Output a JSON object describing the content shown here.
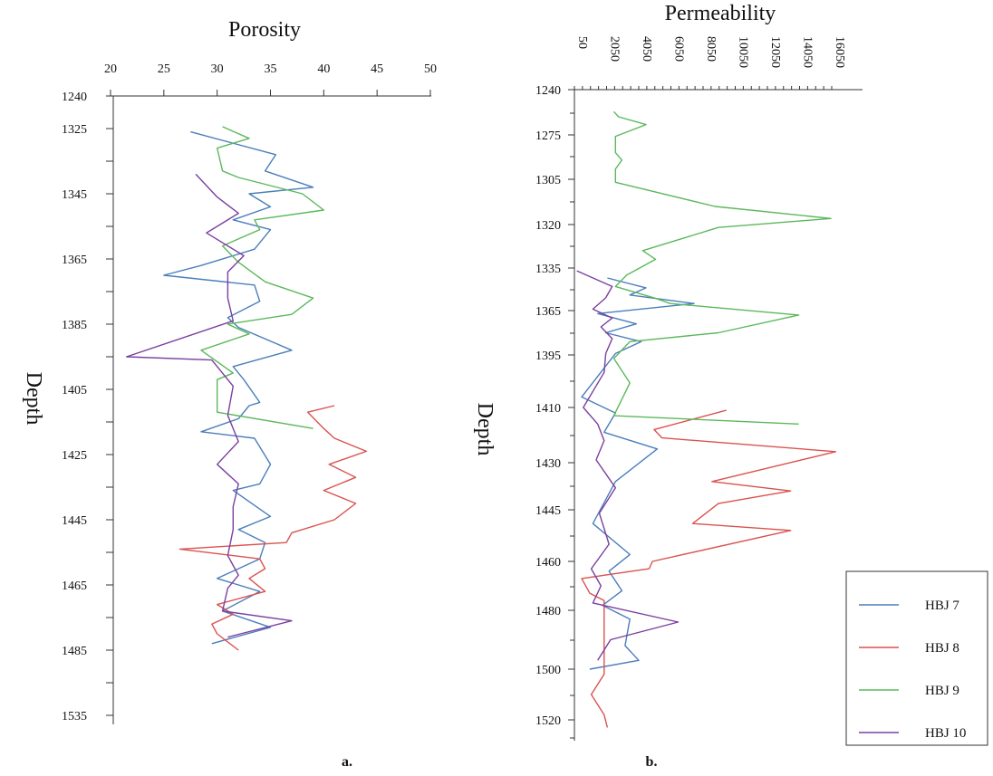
{
  "chart_data": [
    {
      "type": "line",
      "panel_label": "a.",
      "title": "Porosity",
      "ylabel": "Depth",
      "xlabel": "",
      "orientation": "vertical-depth",
      "x_ticks": [
        20,
        25,
        30,
        35,
        40,
        45,
        50
      ],
      "y_tick_labels": [
        "1240",
        "1325",
        "1345",
        "1365",
        "1385",
        "1405",
        "1425",
        "1445",
        "1465",
        "1485",
        "1535"
      ],
      "grid": false,
      "series": [
        {
          "name": "HBJ 7",
          "color": "#4a7ebb",
          "points": [
            [
              27.5,
              1326
            ],
            [
              35.5,
              1333
            ],
            [
              34.5,
              1338
            ],
            [
              39,
              1343
            ],
            [
              33,
              1345
            ],
            [
              35,
              1349
            ],
            [
              31.5,
              1353
            ],
            [
              35,
              1356
            ],
            [
              33.5,
              1362
            ],
            [
              28.5,
              1367
            ],
            [
              25,
              1370
            ],
            [
              33.5,
              1373
            ],
            [
              34,
              1378
            ],
            [
              31,
              1383
            ],
            [
              32,
              1386
            ],
            [
              37,
              1393
            ],
            [
              31.5,
              1398
            ],
            [
              32.5,
              1402
            ],
            [
              34,
              1409
            ],
            [
              33,
              1410
            ],
            [
              32,
              1414
            ],
            [
              28.5,
              1418
            ],
            [
              33.5,
              1420
            ],
            [
              35,
              1428
            ],
            [
              34,
              1434
            ],
            [
              31.5,
              1436
            ],
            [
              35,
              1444
            ],
            [
              32,
              1448
            ],
            [
              34.5,
              1452
            ],
            [
              34,
              1457
            ],
            [
              30,
              1463
            ],
            [
              34,
              1467
            ],
            [
              30.5,
              1473
            ],
            [
              35,
              1478
            ],
            [
              29.5,
              1483
            ]
          ]
        },
        {
          "name": "HBJ 8",
          "color": "#d9534f",
          "points": [
            [
              41,
              1410
            ],
            [
              38.5,
              1412
            ],
            [
              40,
              1417
            ],
            [
              41,
              1420
            ],
            [
              44,
              1424
            ],
            [
              40.5,
              1428
            ],
            [
              43,
              1432
            ],
            [
              40,
              1436
            ],
            [
              43,
              1440
            ],
            [
              41,
              1445
            ],
            [
              37,
              1449
            ],
            [
              36.5,
              1452
            ],
            [
              26.5,
              1454
            ],
            [
              34,
              1457
            ],
            [
              34.5,
              1460
            ],
            [
              33,
              1463
            ],
            [
              34.5,
              1467
            ],
            [
              30,
              1471
            ],
            [
              31.5,
              1474
            ],
            [
              29.5,
              1477
            ],
            [
              30,
              1480
            ],
            [
              32,
              1485
            ]
          ]
        },
        {
          "name": "HBJ 9",
          "color": "#5cb85c",
          "points": [
            [
              30.5,
              1320
            ],
            [
              33,
              1328
            ],
            [
              30,
              1331
            ],
            [
              30.5,
              1338
            ],
            [
              32,
              1340
            ],
            [
              38,
              1345
            ],
            [
              40,
              1350
            ],
            [
              33.5,
              1353
            ],
            [
              34,
              1356
            ],
            [
              30.5,
              1361
            ],
            [
              32,
              1366
            ],
            [
              34.5,
              1372
            ],
            [
              39,
              1377
            ],
            [
              37,
              1382
            ],
            [
              31,
              1385
            ],
            [
              33,
              1388
            ],
            [
              28.5,
              1393
            ],
            [
              31.5,
              1400
            ],
            [
              30,
              1402
            ],
            [
              30,
              1412
            ],
            [
              39,
              1417
            ]
          ]
        },
        {
          "name": "HBJ 10",
          "color": "#7b3fa0",
          "points": [
            [
              28,
              1339
            ],
            [
              30,
              1346
            ],
            [
              32,
              1351
            ],
            [
              29,
              1357
            ],
            [
              32.5,
              1364
            ],
            [
              31,
              1369
            ],
            [
              31,
              1377
            ],
            [
              31.5,
              1384
            ],
            [
              21.5,
              1395
            ],
            [
              29.5,
              1396
            ],
            [
              31.5,
              1404
            ],
            [
              31,
              1413
            ],
            [
              32,
              1421
            ],
            [
              30,
              1428
            ],
            [
              32,
              1434
            ],
            [
              31.5,
              1441
            ],
            [
              31.5,
              1448
            ],
            [
              31,
              1456
            ],
            [
              32,
              1462
            ],
            [
              31,
              1466
            ],
            [
              30.5,
              1473
            ],
            [
              37,
              1476
            ],
            [
              31,
              1481
            ]
          ]
        }
      ]
    },
    {
      "type": "line",
      "panel_label": "b.",
      "title": "Permeability",
      "ylabel": "Depth",
      "xlabel": "",
      "orientation": "vertical-depth",
      "x_ticks": [
        50,
        2050,
        4050,
        6050,
        8050,
        10050,
        12050,
        14050,
        16050
      ],
      "y_ticks": [
        1240,
        1275,
        1305,
        1320,
        1335,
        1365,
        1395,
        1410,
        1430,
        1445,
        1460,
        1480,
        1500,
        1520
      ],
      "grid": false,
      "legend": {
        "position": "right",
        "entries": [
          "HBJ 7",
          "HBJ 8",
          "HBJ 9",
          "HBJ 10"
        ]
      },
      "series": [
        {
          "name": "HBJ 7",
          "color": "#4a7ebb",
          "points": [
            [
              2100,
              1342
            ],
            [
              4500,
              1349
            ],
            [
              3500,
              1354
            ],
            [
              7500,
              1360
            ],
            [
              1500,
              1367
            ],
            [
              3900,
              1374
            ],
            [
              2000,
              1380
            ],
            [
              4200,
              1386
            ],
            [
              2600,
              1394
            ],
            [
              500,
              1407
            ],
            [
              2600,
              1412
            ],
            [
              1900,
              1419
            ],
            [
              5200,
              1425
            ],
            [
              2600,
              1436
            ],
            [
              1200,
              1449
            ],
            [
              3500,
              1458
            ],
            [
              2200,
              1464
            ],
            [
              3000,
              1472
            ],
            [
              1800,
              1478
            ],
            [
              3500,
              1483
            ],
            [
              3200,
              1492
            ],
            [
              4050,
              1497
            ],
            [
              1000,
              1500
            ]
          ]
        },
        {
          "name": "HBJ 8",
          "color": "#d9534f",
          "points": [
            [
              9500,
              1411
            ],
            [
              5000,
              1418
            ],
            [
              5500,
              1421
            ],
            [
              16300,
              1426
            ],
            [
              8600,
              1436
            ],
            [
              13500,
              1439
            ],
            [
              9000,
              1443
            ],
            [
              7400,
              1449
            ],
            [
              13500,
              1451
            ],
            [
              4900,
              1460
            ],
            [
              4700,
              1463
            ],
            [
              500,
              1467
            ],
            [
              1000,
              1473
            ],
            [
              1900,
              1476
            ],
            [
              1900,
              1482
            ],
            [
              1900,
              1488
            ],
            [
              1900,
              1502
            ],
            [
              1100,
              1510
            ],
            [
              1900,
              1518
            ],
            [
              2100,
              1523
            ]
          ]
        },
        {
          "name": "HBJ 9",
          "color": "#5cb85c",
          "points": [
            [
              2500,
              1257
            ],
            [
              2800,
              1261
            ],
            [
              4500,
              1267
            ],
            [
              2600,
              1276
            ],
            [
              2600,
              1287
            ],
            [
              3000,
              1292
            ],
            [
              2600,
              1298
            ],
            [
              2600,
              1306
            ],
            [
              8800,
              1314
            ],
            [
              16000,
              1318
            ],
            [
              9000,
              1321
            ],
            [
              4300,
              1329
            ],
            [
              5100,
              1332
            ],
            [
              3300,
              1340
            ],
            [
              2600,
              1348
            ],
            [
              5000,
              1356
            ],
            [
              6000,
              1360
            ],
            [
              14000,
              1368
            ],
            [
              9000,
              1380
            ],
            [
              3500,
              1386
            ],
            [
              2500,
              1396
            ],
            [
              3500,
              1403
            ],
            [
              2500,
              1413
            ],
            [
              14000,
              1416
            ]
          ]
        },
        {
          "name": "HBJ 10",
          "color": "#7b3fa0",
          "points": [
            [
              200,
              1337
            ],
            [
              2400,
              1348
            ],
            [
              2000,
              1356
            ],
            [
              1200,
              1364
            ],
            [
              2400,
              1370
            ],
            [
              1700,
              1376
            ],
            [
              2400,
              1384
            ],
            [
              2000,
              1394
            ],
            [
              1900,
              1400
            ],
            [
              600,
              1410
            ],
            [
              1500,
              1416
            ],
            [
              1900,
              1422
            ],
            [
              1400,
              1429
            ],
            [
              2600,
              1438
            ],
            [
              1600,
              1446
            ],
            [
              2200,
              1455
            ],
            [
              1100,
              1463
            ],
            [
              1700,
              1470
            ],
            [
              1200,
              1477
            ],
            [
              6500,
              1484
            ],
            [
              2300,
              1490
            ],
            [
              1500,
              1497
            ]
          ]
        }
      ]
    }
  ]
}
